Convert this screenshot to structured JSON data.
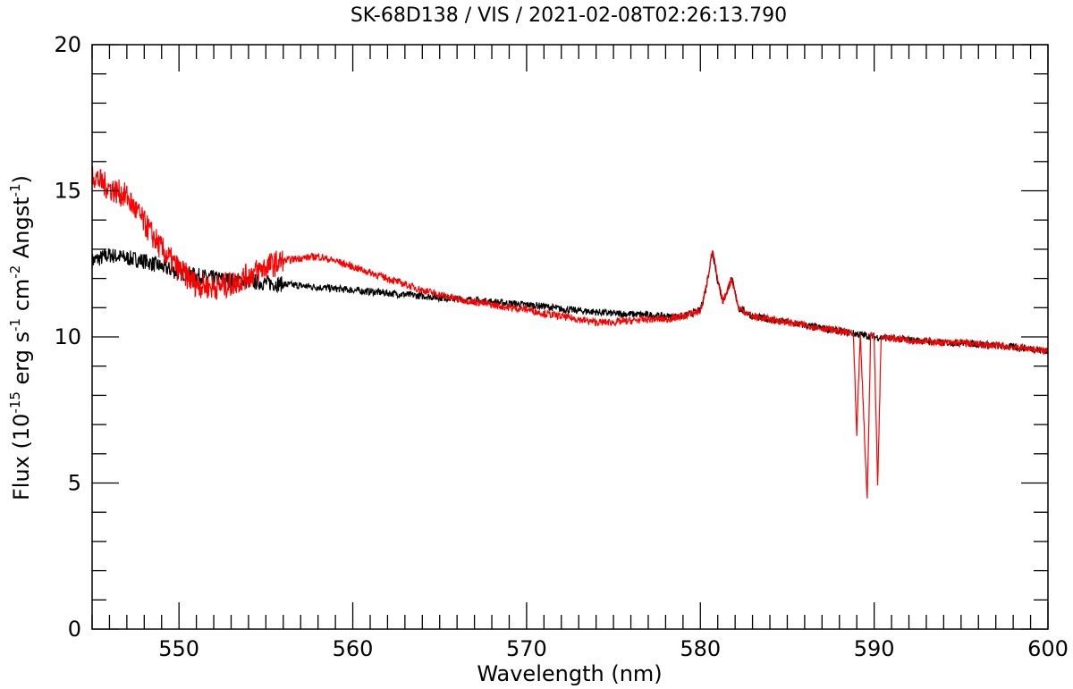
{
  "chart_data": {
    "type": "line",
    "title": "SK-68D138 / VIS / 2021-02-08T02:26:13.790",
    "xlabel": "Wavelength (nm)",
    "ylabel": {
      "prefix": "Flux (10",
      "exp1": "-15",
      "mid1": " erg s",
      "exp2": "-1",
      "mid2": " cm",
      "exp3": "-2",
      "mid3": " Angst",
      "exp4": "-1",
      "suffix": ")"
    },
    "xlim": [
      545,
      600
    ],
    "ylim": [
      0,
      20
    ],
    "x_ticks": [
      550,
      560,
      570,
      580,
      590,
      600
    ],
    "y_ticks": [
      0,
      5,
      10,
      15,
      20
    ],
    "x_minor_step": 1,
    "y_minor_step": 1,
    "grid": false,
    "series": [
      {
        "color": "#000000",
        "points": [
          [
            545.0,
            12.6
          ],
          [
            546.0,
            12.8
          ],
          [
            547.0,
            12.7
          ],
          [
            548.0,
            12.6
          ],
          [
            549.0,
            12.4
          ],
          [
            550.0,
            12.2
          ],
          [
            551.0,
            12.1
          ],
          [
            552.0,
            12.0
          ],
          [
            553.0,
            11.95
          ],
          [
            554.0,
            11.9
          ],
          [
            555.0,
            11.85
          ],
          [
            556.0,
            11.8
          ],
          [
            557.0,
            11.75
          ],
          [
            558.0,
            11.7
          ],
          [
            559.0,
            11.65
          ],
          [
            560.0,
            11.6
          ],
          [
            561.0,
            11.55
          ],
          [
            562.0,
            11.5
          ],
          [
            563.0,
            11.45
          ],
          [
            564.0,
            11.4
          ],
          [
            565.0,
            11.35
          ],
          [
            566.0,
            11.3
          ],
          [
            567.0,
            11.25
          ],
          [
            568.0,
            11.2
          ],
          [
            569.0,
            11.15
          ],
          [
            570.0,
            11.1
          ],
          [
            571.0,
            11.05
          ],
          [
            572.0,
            10.95
          ],
          [
            573.0,
            10.9
          ],
          [
            574.0,
            10.85
          ],
          [
            575.0,
            10.8
          ],
          [
            576.0,
            10.78
          ],
          [
            577.0,
            10.75
          ],
          [
            578.0,
            10.7
          ],
          [
            579.0,
            10.7
          ],
          [
            580.0,
            10.9
          ],
          [
            580.3,
            11.6
          ],
          [
            580.7,
            12.95
          ],
          [
            581.0,
            11.9
          ],
          [
            581.3,
            11.2
          ],
          [
            581.8,
            12.0
          ],
          [
            582.2,
            11.0
          ],
          [
            583.0,
            10.7
          ],
          [
            584.0,
            10.6
          ],
          [
            585.0,
            10.5
          ],
          [
            586.0,
            10.4
          ],
          [
            587.0,
            10.3
          ],
          [
            588.0,
            10.2
          ],
          [
            589.0,
            10.1
          ],
          [
            590.0,
            10.0
          ],
          [
            591.0,
            9.95
          ],
          [
            592.0,
            9.9
          ],
          [
            593.0,
            9.85
          ],
          [
            594.0,
            9.8
          ],
          [
            595.0,
            9.8
          ],
          [
            596.0,
            9.75
          ],
          [
            597.0,
            9.7
          ],
          [
            598.0,
            9.65
          ],
          [
            599.0,
            9.6
          ],
          [
            600.0,
            9.5
          ]
        ]
      },
      {
        "color": "#ff0000",
        "points": [
          [
            545.0,
            15.6
          ],
          [
            545.5,
            15.3
          ],
          [
            546.0,
            15.1
          ],
          [
            547.0,
            14.8
          ],
          [
            548.0,
            13.9
          ],
          [
            549.0,
            13.0
          ],
          [
            550.0,
            12.3
          ],
          [
            551.0,
            11.8
          ],
          [
            552.0,
            11.7
          ],
          [
            553.0,
            11.8
          ],
          [
            554.0,
            12.1
          ],
          [
            555.0,
            12.4
          ],
          [
            556.0,
            12.6
          ],
          [
            557.0,
            12.7
          ],
          [
            558.0,
            12.75
          ],
          [
            559.0,
            12.6
          ],
          [
            560.0,
            12.4
          ],
          [
            561.0,
            12.2
          ],
          [
            562.0,
            12.0
          ],
          [
            563.0,
            11.8
          ],
          [
            564.0,
            11.6
          ],
          [
            565.0,
            11.45
          ],
          [
            566.0,
            11.3
          ],
          [
            567.0,
            11.2
          ],
          [
            568.0,
            11.1
          ],
          [
            569.0,
            11.0
          ],
          [
            570.0,
            10.95
          ],
          [
            571.0,
            10.8
          ],
          [
            572.0,
            10.7
          ],
          [
            573.0,
            10.6
          ],
          [
            574.0,
            10.5
          ],
          [
            575.0,
            10.5
          ],
          [
            576.0,
            10.55
          ],
          [
            577.0,
            10.6
          ],
          [
            578.0,
            10.6
          ],
          [
            579.0,
            10.7
          ],
          [
            580.0,
            10.9
          ],
          [
            580.3,
            11.6
          ],
          [
            580.7,
            13.0
          ],
          [
            581.0,
            11.9
          ],
          [
            581.3,
            11.2
          ],
          [
            581.8,
            12.0
          ],
          [
            582.2,
            11.0
          ],
          [
            583.0,
            10.7
          ],
          [
            584.0,
            10.6
          ],
          [
            585.0,
            10.5
          ],
          [
            586.0,
            10.4
          ],
          [
            587.0,
            10.3
          ],
          [
            588.0,
            10.2
          ],
          [
            588.8,
            10.1
          ],
          [
            589.0,
            6.6
          ],
          [
            589.2,
            10.1
          ],
          [
            589.6,
            4.4
          ],
          [
            589.8,
            10.1
          ],
          [
            590.0,
            10.0
          ],
          [
            590.2,
            4.9
          ],
          [
            590.4,
            10.0
          ],
          [
            591.0,
            9.95
          ],
          [
            592.0,
            9.9
          ],
          [
            593.0,
            9.85
          ],
          [
            594.0,
            9.8
          ],
          [
            595.0,
            9.8
          ],
          [
            596.0,
            9.75
          ],
          [
            597.0,
            9.7
          ],
          [
            598.0,
            9.65
          ],
          [
            599.0,
            9.6
          ],
          [
            600.0,
            9.5
          ]
        ]
      }
    ]
  }
}
